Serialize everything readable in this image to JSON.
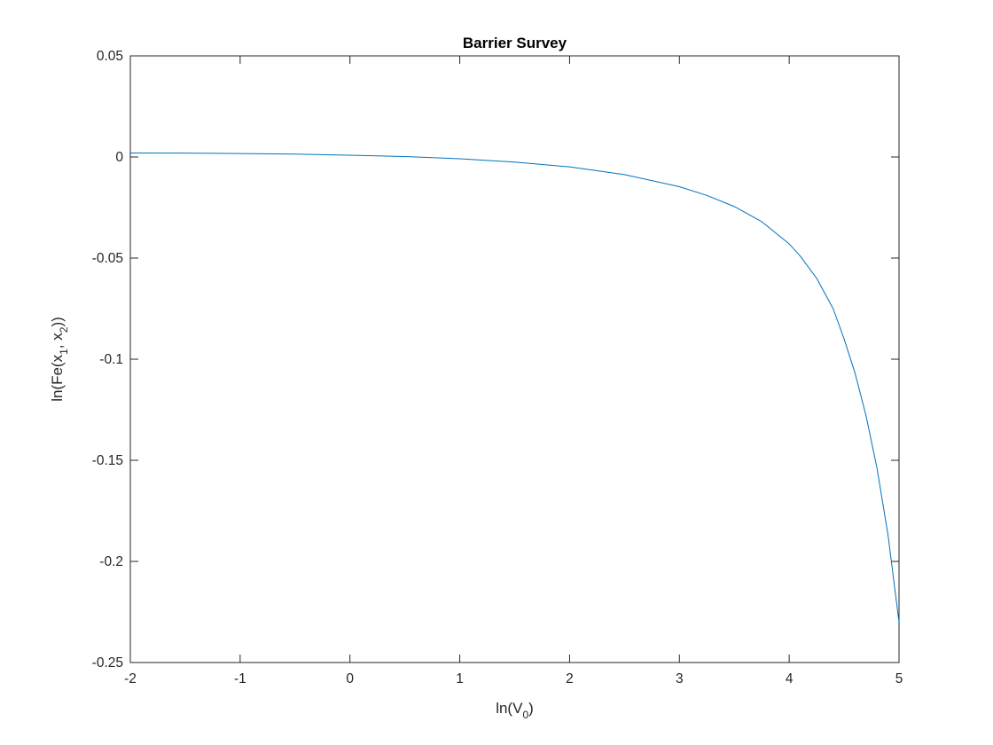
{
  "chart_data": {
    "type": "line",
    "title": "Barrier Survey",
    "xlabel": {
      "base": "ln(V",
      "sub": "0",
      "tail": ")"
    },
    "ylabel": {
      "p1": "ln(Fe(x",
      "s1": "1",
      "p2": ", x",
      "s2": "2",
      "p3": "))"
    },
    "xlim": [
      -2,
      5
    ],
    "ylim": [
      -0.25,
      0.05
    ],
    "xticks": [
      -2,
      -1,
      0,
      1,
      2,
      3,
      4,
      5
    ],
    "xtick_labels": [
      "-2",
      "-1",
      "0",
      "1",
      "2",
      "3",
      "4",
      "5"
    ],
    "yticks": [
      -0.25,
      -0.2,
      -0.15,
      -0.1,
      -0.05,
      0,
      0.05
    ],
    "ytick_labels": [
      "-0.25",
      "-0.2",
      "-0.15",
      "-0.1",
      "-0.05",
      "0",
      "0.05"
    ],
    "grid": false,
    "series": [
      {
        "color": "#0072BD",
        "x": [
          -2,
          -1.5,
          -1,
          -0.5,
          0,
          0.5,
          1,
          1.5,
          2,
          2.5,
          3,
          3.25,
          3.5,
          3.75,
          4,
          4.1,
          4.25,
          4.4,
          4.5,
          4.6,
          4.7,
          4.8,
          4.9,
          5
        ],
        "y": [
          0.002,
          0.0019,
          0.0017,
          0.0014,
          0.0009,
          0.0002,
          -0.0009,
          -0.0025,
          -0.0049,
          -0.0087,
          -0.0147,
          -0.019,
          -0.0245,
          -0.032,
          -0.043,
          -0.049,
          -0.06,
          -0.075,
          -0.09,
          -0.107,
          -0.128,
          -0.154,
          -0.187,
          -0.23
        ]
      }
    ]
  }
}
